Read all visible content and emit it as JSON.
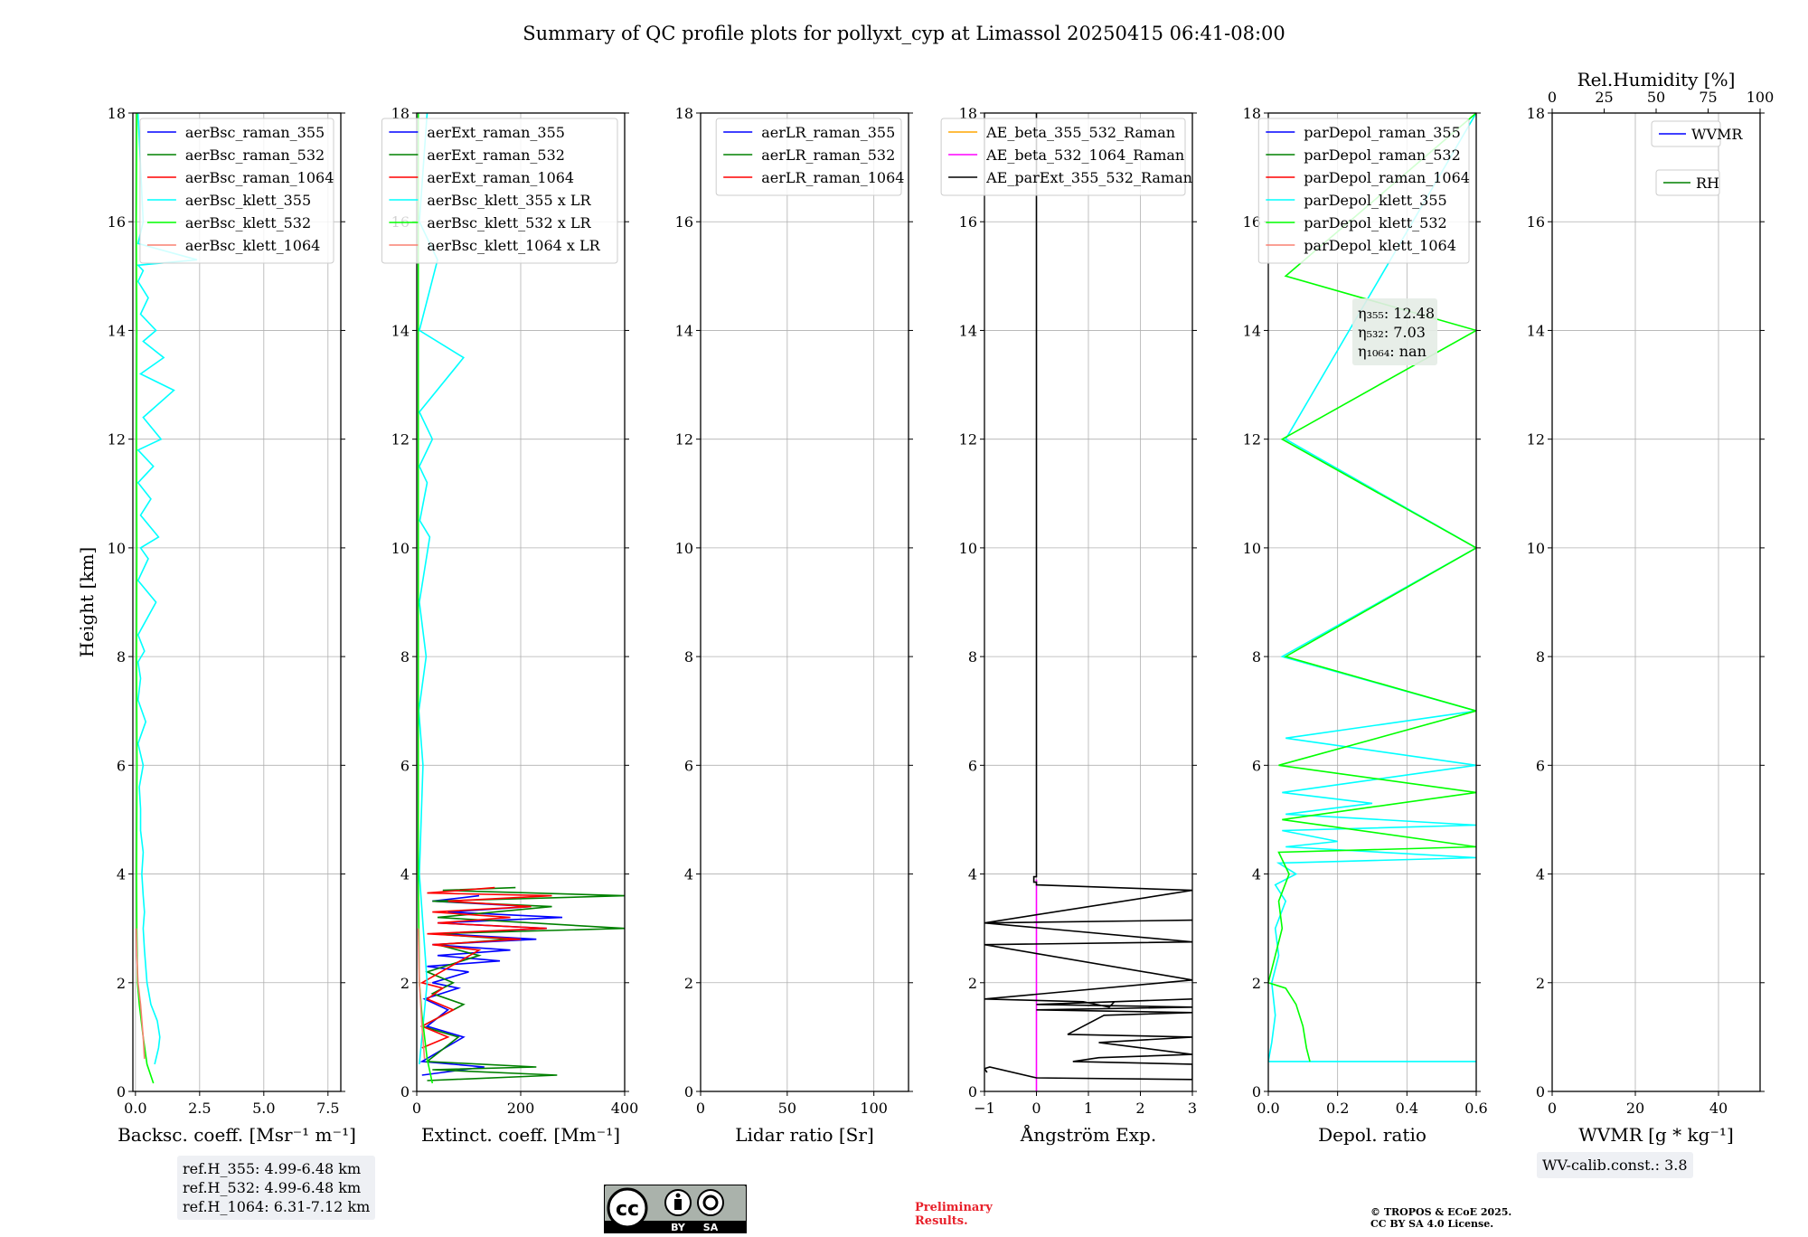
{
  "title": "Summary of QC profile plots for pollyxt_cyp at Limassol 20250415 06:41-08:00",
  "chart_data": [
    {
      "id": "backscatter",
      "type": "line",
      "xlabel": "Backsc. coeff. [Msr⁻¹ m⁻¹]",
      "ylabel": "Height [km]",
      "xlim": [
        -0.1,
        8.0
      ],
      "ylim": [
        0,
        18
      ],
      "xticks": [
        "0.0",
        "2.5",
        "5.0",
        "7.5"
      ],
      "xtick_values": [
        0,
        2.5,
        5.0,
        7.5
      ],
      "yticks": [
        0,
        2,
        4,
        6,
        8,
        10,
        12,
        14,
        16,
        18
      ],
      "grid": true,
      "legend": "top-right",
      "series": [
        {
          "name": "aerBsc_raman_355",
          "color": "#0000ff",
          "x": [],
          "y": []
        },
        {
          "name": "aerBsc_raman_532",
          "color": "#008000",
          "x": [],
          "y": []
        },
        {
          "name": "aerBsc_raman_1064",
          "color": "#ff0000",
          "x": [],
          "y": []
        },
        {
          "name": "aerBsc_klett_355",
          "color": "#00ffff",
          "x": [
            0.75,
            0.9,
            0.95,
            0.85,
            0.6,
            0.45,
            0.4,
            0.35,
            0.3,
            0.35,
            0.3,
            0.25,
            0.3,
            0.2,
            0.2,
            0.15,
            0.3,
            0.1,
            0.4,
            0.1,
            0.2,
            0.1,
            0.35,
            0.1,
            0.8,
            0.1,
            0.5,
            0.2,
            0.9,
            0.2,
            0.6,
            0.1,
            0.7,
            0.1,
            1.0,
            0.3,
            1.5,
            0.2,
            1.1,
            0.3,
            0.8,
            0.2,
            0.5,
            0.1,
            0.3,
            0.1,
            2.4,
            0.1,
            0.3,
            0.1
          ],
          "y": [
            0.5,
            0.8,
            1.0,
            1.3,
            1.6,
            2.0,
            2.3,
            2.6,
            3.0,
            3.3,
            3.6,
            4.0,
            4.4,
            4.8,
            5.2,
            5.6,
            6.0,
            6.4,
            6.8,
            7.2,
            7.6,
            7.9,
            8.1,
            8.4,
            9.0,
            9.4,
            9.8,
            10.0,
            10.2,
            10.6,
            10.9,
            11.2,
            11.5,
            11.8,
            12.0,
            12.4,
            12.9,
            13.2,
            13.5,
            13.8,
            14.0,
            14.3,
            14.6,
            14.9,
            15.1,
            15.2,
            15.3,
            15.6,
            16.0,
            18.0
          ]
        },
        {
          "name": "aerBsc_klett_532",
          "color": "#00ff00",
          "x": [
            0.7,
            0.45,
            0.3,
            0.15,
            0.08,
            0.05,
            0.04,
            0.06,
            0.04,
            0.05,
            0.04,
            0.05,
            0.03,
            0.05
          ],
          "y": [
            0.15,
            0.5,
            1.0,
            1.6,
            2.0,
            3.0,
            4.0,
            6.0,
            8.0,
            10.0,
            12.0,
            14.0,
            16.0,
            18.0
          ]
        },
        {
          "name": "aerBsc_klett_1064",
          "color": "#fa8072",
          "x": [
            0.35,
            0.3,
            0.2,
            0.1,
            0.05,
            0.03
          ],
          "y": [
            0.6,
            1.0,
            1.6,
            2.0,
            2.5,
            3.0
          ]
        }
      ]
    },
    {
      "id": "extinction",
      "type": "line",
      "xlabel": "Extinct. coeff. [Mm⁻¹]",
      "xlim": [
        0,
        400
      ],
      "ylim": [
        0,
        18
      ],
      "xticks": [
        "0",
        "200",
        "400"
      ],
      "xtick_values": [
        0,
        200,
        400
      ],
      "yticks": [
        0,
        2,
        4,
        6,
        8,
        10,
        12,
        14,
        16,
        18
      ],
      "grid": true,
      "legend": "top-right",
      "series": [
        {
          "name": "aerExt_raman_355",
          "color": "#0000ff",
          "x": [
            10,
            130,
            10,
            90,
            20,
            60,
            15,
            80,
            30,
            100,
            20,
            160,
            40,
            180,
            30,
            230,
            50,
            250,
            40,
            280,
            60,
            220,
            30,
            120
          ],
          "y": [
            0.3,
            0.45,
            0.55,
            1.0,
            1.2,
            1.5,
            1.7,
            1.9,
            2.0,
            2.2,
            2.3,
            2.4,
            2.5,
            2.6,
            2.7,
            2.8,
            2.9,
            3.0,
            3.1,
            3.2,
            3.3,
            3.4,
            3.5,
            3.6
          ]
        },
        {
          "name": "aerExt_raman_532",
          "color": "#008000",
          "x": [
            20,
            270,
            30,
            230,
            20,
            80,
            10,
            90,
            30,
            70,
            20,
            120,
            40,
            180,
            30,
            400,
            40,
            260,
            30,
            400,
            50,
            190
          ],
          "y": [
            0.2,
            0.3,
            0.4,
            0.45,
            0.55,
            1.0,
            1.2,
            1.6,
            1.8,
            2.0,
            2.2,
            2.5,
            2.7,
            2.8,
            2.9,
            3.0,
            3.2,
            3.4,
            3.5,
            3.6,
            3.7,
            3.75
          ]
        },
        {
          "name": "aerExt_raman_1064",
          "color": "#ff0000",
          "x": [
            10,
            60,
            10,
            70,
            20,
            50,
            10,
            120,
            30,
            200,
            20,
            250,
            40,
            180,
            30,
            220,
            60,
            260,
            20,
            150
          ],
          "y": [
            0.8,
            1.0,
            1.2,
            1.5,
            1.7,
            1.9,
            2.0,
            2.6,
            2.7,
            2.8,
            2.9,
            3.0,
            3.1,
            3.2,
            3.3,
            3.4,
            3.5,
            3.6,
            3.65,
            3.75
          ]
        },
        {
          "name": "aerBsc_klett_355 x LR",
          "color": "#00ffff",
          "x": [
            5,
            20,
            5,
            12,
            4,
            18,
            5,
            25,
            6,
            20,
            5,
            30,
            5,
            90,
            5,
            40,
            5,
            20
          ],
          "y": [
            0.5,
            2.0,
            4.0,
            6.0,
            7.0,
            8.0,
            9.0,
            10.2,
            10.5,
            11.2,
            11.5,
            12.0,
            12.5,
            13.5,
            14.0,
            15.3,
            16.0,
            18.0
          ]
        },
        {
          "name": "aerBsc_klett_532 x LR",
          "color": "#00ff00",
          "x": [
            30,
            20,
            10,
            5,
            3,
            3
          ],
          "y": [
            0.15,
            0.6,
            1.4,
            2.0,
            4.0,
            18.0
          ]
        },
        {
          "name": "aerBsc_klett_1064 x LR",
          "color": "#fa8072",
          "x": [
            15,
            10,
            5,
            3
          ],
          "y": [
            0.6,
            1.2,
            2.0,
            3.0
          ]
        }
      ]
    },
    {
      "id": "lidar-ratio",
      "type": "line",
      "xlabel": "Lidar ratio [Sr]",
      "xlim": [
        0,
        120
      ],
      "ylim": [
        0,
        18
      ],
      "xticks": [
        "0",
        "50",
        "100"
      ],
      "xtick_values": [
        0,
        50,
        100
      ],
      "yticks": [
        0,
        2,
        4,
        6,
        8,
        10,
        12,
        14,
        16,
        18
      ],
      "grid": true,
      "legend": "top-right",
      "series": [
        {
          "name": "aerLR_raman_355",
          "color": "#0000ff",
          "x": [],
          "y": []
        },
        {
          "name": "aerLR_raman_532",
          "color": "#008000",
          "x": [],
          "y": []
        },
        {
          "name": "aerLR_raman_1064",
          "color": "#ff0000",
          "x": [],
          "y": []
        }
      ]
    },
    {
      "id": "angstrom",
      "type": "line",
      "xlabel": "Ångström Exp.",
      "xlim": [
        -1,
        3
      ],
      "ylim": [
        0,
        18
      ],
      "xticks": [
        "−1",
        "0",
        "1",
        "2",
        "3"
      ],
      "xtick_values": [
        -1,
        0,
        1,
        2,
        3
      ],
      "yticks": [
        0,
        2,
        4,
        6,
        8,
        10,
        12,
        14,
        16,
        18
      ],
      "grid": true,
      "legend": "top-right",
      "series": [
        {
          "name": "AE_beta_355_532_Raman",
          "color": "#ffa500",
          "x": [],
          "y": []
        },
        {
          "name": "AE_beta_532_1064_Raman",
          "color": "#ff00ff",
          "x": [
            0,
            0
          ],
          "y": [
            0,
            3.9
          ]
        },
        {
          "name": "AE_parExt_355_532_Raman",
          "color": "#000000",
          "x": [
            -0.95,
            -1.0,
            -0.9,
            0.0,
            3.0,
            3.0,
            0.7,
            1.2,
            3.0,
            1.2,
            3.0,
            0.6,
            1.3,
            3.0,
            0.0,
            3.0,
            0.0,
            3.0,
            1.5,
            1.4,
            0.9,
            -1.0,
            3.0,
            -1.0,
            3.0,
            -1.0,
            3.0,
            -1.0,
            3.0,
            0.0,
            0.0,
            -0.05,
            -0.05,
            0.0,
            0.0
          ],
          "y": [
            0.35,
            0.42,
            0.45,
            0.25,
            0.22,
            0.5,
            0.55,
            0.62,
            0.68,
            0.9,
            1.0,
            1.05,
            1.4,
            1.45,
            1.5,
            1.55,
            1.6,
            1.7,
            1.65,
            1.55,
            1.65,
            1.7,
            2.05,
            2.7,
            2.75,
            3.1,
            3.15,
            3.1,
            3.7,
            3.8,
            3.85,
            3.85,
            3.95,
            3.95,
            18.0
          ]
        }
      ]
    },
    {
      "id": "depol",
      "type": "line",
      "xlabel": "Depol. ratio",
      "xlim": [
        0,
        0.6
      ],
      "ylim": [
        0,
        18
      ],
      "xticks": [
        "0.0",
        "0.2",
        "0.4",
        "0.6"
      ],
      "xtick_values": [
        0,
        0.2,
        0.4,
        0.6
      ],
      "yticks": [
        0,
        2,
        4,
        6,
        8,
        10,
        12,
        14,
        16,
        18
      ],
      "grid": true,
      "legend": "top-right",
      "annotation": {
        "eta355": "η₃₅₅: 12.48",
        "eta532": "η₅₃₂: 7.03",
        "eta1064": "η₁₀₆₄: nan"
      },
      "series": [
        {
          "name": "parDepol_raman_355",
          "color": "#0000ff",
          "x": [],
          "y": []
        },
        {
          "name": "parDepol_raman_532",
          "color": "#008000",
          "x": [],
          "y": []
        },
        {
          "name": "parDepol_raman_1064",
          "color": "#ff0000",
          "x": [],
          "y": []
        },
        {
          "name": "parDepol_klett_355",
          "color": "#00ffff",
          "x": [
            0.6,
            0.0,
            0.01,
            0.02,
            0.01,
            0.03,
            0.02,
            0.05,
            0.02,
            0.08,
            0.03,
            0.6,
            0.05,
            0.2,
            0.04,
            0.6,
            0.05,
            0.3,
            0.04,
            0.6,
            0.05,
            0.6,
            0.04,
            0.6,
            0.05,
            0.6
          ],
          "y": [
            0.55,
            0.55,
            0.9,
            1.4,
            2.0,
            2.5,
            3.0,
            3.5,
            3.8,
            4.0,
            4.2,
            4.3,
            4.5,
            4.6,
            4.8,
            4.9,
            5.1,
            5.3,
            5.5,
            6.0,
            6.5,
            7.0,
            8.0,
            10.0,
            12.0,
            18.0
          ]
        },
        {
          "name": "parDepol_klett_532",
          "color": "#00ff00",
          "x": [
            0.12,
            0.11,
            0.1,
            0.08,
            0.05,
            0.0,
            0.02,
            0.04,
            0.03,
            0.06,
            0.03,
            0.6,
            0.04,
            0.6,
            0.03,
            0.6,
            0.05,
            0.6,
            0.04,
            0.6,
            0.05,
            0.6
          ],
          "y": [
            0.55,
            0.8,
            1.2,
            1.6,
            1.9,
            2.0,
            2.5,
            3.0,
            3.5,
            4.0,
            4.4,
            4.5,
            5.0,
            5.5,
            6.0,
            7.0,
            8.0,
            10.0,
            12.0,
            14.0,
            15.0,
            18.0
          ]
        },
        {
          "name": "parDepol_klett_1064",
          "color": "#fa8072",
          "x": [],
          "y": []
        }
      ]
    },
    {
      "id": "wvmr",
      "type": "line",
      "xlabel": "WVMR [g * kg⁻¹]",
      "top_xlabel": "Rel.Humidity [%]",
      "xlim": [
        0,
        50
      ],
      "ylim": [
        0,
        18
      ],
      "xticks": [
        "0",
        "20",
        "40"
      ],
      "xtick_values": [
        0,
        20,
        40
      ],
      "top_xlim": [
        0,
        100
      ],
      "top_xticks": [
        "0",
        "25",
        "50",
        "75",
        "100"
      ],
      "top_xtick_values": [
        0,
        25,
        50,
        75,
        100
      ],
      "yticks": [
        0,
        2,
        4,
        6,
        8,
        10,
        12,
        14,
        16,
        18
      ],
      "grid": true,
      "series": [
        {
          "name": "WVMR",
          "color": "#0000ff",
          "x": [],
          "y": []
        },
        {
          "name": "RH",
          "color": "#008000",
          "x": [],
          "y": []
        }
      ]
    }
  ],
  "ref_box": {
    "line1": "ref.H_355: 4.99-6.48 km",
    "line2": "ref.H_532: 4.99-6.48 km",
    "line3": "ref.H_1064: 6.31-7.12 km"
  },
  "wv_calib": "WV-calib.const.: 3.8",
  "preliminary": {
    "line1": "Preliminary",
    "line2": "Results."
  },
  "copyright": {
    "line1": "© TROPOS & ECoE 2025.",
    "line2": "CC BY SA 4.0 License."
  },
  "license_badge": {
    "cc": "cc",
    "by": "BY",
    "sa": "SA"
  }
}
